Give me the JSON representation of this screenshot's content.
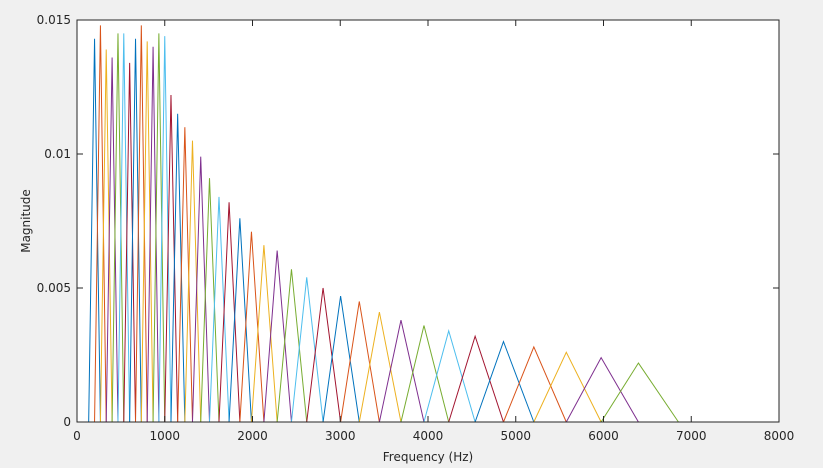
{
  "chart_data": {
    "type": "line",
    "xlabel": "Frequency (Hz)",
    "ylabel": "Magnitude",
    "xlim": [
      0,
      8000
    ],
    "ylim": [
      0,
      0.015
    ],
    "xticks": [
      0,
      1000,
      2000,
      3000,
      4000,
      5000,
      6000,
      7000,
      8000
    ],
    "yticks": [
      0,
      0.005,
      0.01,
      0.015
    ],
    "series": [
      {
        "color": "#0072BD",
        "x": [
          133,
          200,
          267
        ],
        "values": [
          0,
          0.0143,
          0
        ]
      },
      {
        "color": "#D95319",
        "x": [
          200,
          267,
          333
        ],
        "values": [
          0,
          0.0148,
          0
        ]
      },
      {
        "color": "#EDB120",
        "x": [
          267,
          333,
          400
        ],
        "values": [
          0,
          0.0139,
          0
        ]
      },
      {
        "color": "#7E2F8E",
        "x": [
          333,
          400,
          467
        ],
        "values": [
          0,
          0.0136,
          0
        ]
      },
      {
        "color": "#77AC30",
        "x": [
          400,
          467,
          533
        ],
        "values": [
          0,
          0.0145,
          0
        ]
      },
      {
        "color": "#4DBEEE",
        "x": [
          467,
          533,
          600
        ],
        "values": [
          0,
          0.0145,
          0
        ]
      },
      {
        "color": "#A2142F",
        "x": [
          533,
          600,
          667
        ],
        "values": [
          0,
          0.0134,
          0
        ]
      },
      {
        "color": "#0072BD",
        "x": [
          600,
          667,
          733
        ],
        "values": [
          0,
          0.0143,
          0
        ]
      },
      {
        "color": "#D95319",
        "x": [
          667,
          733,
          800
        ],
        "values": [
          0,
          0.0148,
          0
        ]
      },
      {
        "color": "#EDB120",
        "x": [
          733,
          800,
          867
        ],
        "values": [
          0,
          0.0142,
          0
        ]
      },
      {
        "color": "#7E2F8E",
        "x": [
          800,
          867,
          933
        ],
        "values": [
          0,
          0.014,
          0
        ]
      },
      {
        "color": "#77AC30",
        "x": [
          867,
          933,
          1000
        ],
        "values": [
          0,
          0.0145,
          0
        ]
      },
      {
        "color": "#4DBEEE",
        "x": [
          933,
          1000,
          1071
        ],
        "values": [
          0,
          0.0144,
          0
        ]
      },
      {
        "color": "#A2142F",
        "x": [
          1000,
          1071,
          1147
        ],
        "values": [
          0,
          0.0122,
          0
        ]
      },
      {
        "color": "#0072BD",
        "x": [
          1071,
          1147,
          1229
        ],
        "values": [
          0,
          0.0115,
          0
        ]
      },
      {
        "color": "#D95319",
        "x": [
          1147,
          1229,
          1316
        ],
        "values": [
          0,
          0.011,
          0
        ]
      },
      {
        "color": "#EDB120",
        "x": [
          1229,
          1316,
          1410
        ],
        "values": [
          0,
          0.0105,
          0
        ]
      },
      {
        "color": "#7E2F8E",
        "x": [
          1316,
          1410,
          1510
        ],
        "values": [
          0,
          0.0099,
          0
        ]
      },
      {
        "color": "#77AC30",
        "x": [
          1410,
          1510,
          1618
        ],
        "values": [
          0,
          0.0091,
          0
        ]
      },
      {
        "color": "#4DBEEE",
        "x": [
          1510,
          1618,
          1733
        ],
        "values": [
          0,
          0.0084,
          0
        ]
      },
      {
        "color": "#A2142F",
        "x": [
          1618,
          1733,
          1856
        ],
        "values": [
          0,
          0.0082,
          0
        ]
      },
      {
        "color": "#0072BD",
        "x": [
          1733,
          1856,
          1988
        ],
        "values": [
          0,
          0.0076,
          0
        ]
      },
      {
        "color": "#D95319",
        "x": [
          1856,
          1988,
          2130
        ],
        "values": [
          0,
          0.0071,
          0
        ]
      },
      {
        "color": "#EDB120",
        "x": [
          1988,
          2130,
          2281
        ],
        "values": [
          0,
          0.0066,
          0
        ]
      },
      {
        "color": "#7E2F8E",
        "x": [
          2130,
          2281,
          2444
        ],
        "values": [
          0,
          0.0064,
          0
        ]
      },
      {
        "color": "#77AC30",
        "x": [
          2281,
          2444,
          2618
        ],
        "values": [
          0,
          0.0057,
          0
        ]
      },
      {
        "color": "#4DBEEE",
        "x": [
          2444,
          2618,
          2804
        ],
        "values": [
          0,
          0.0054,
          0
        ]
      },
      {
        "color": "#A2142F",
        "x": [
          2618,
          2804,
          3004
        ],
        "values": [
          0,
          0.005,
          0
        ]
      },
      {
        "color": "#0072BD",
        "x": [
          2804,
          3004,
          3217
        ],
        "values": [
          0,
          0.0047,
          0
        ]
      },
      {
        "color": "#D95319",
        "x": [
          3004,
          3217,
          3446
        ],
        "values": [
          0,
          0.0045,
          0
        ]
      },
      {
        "color": "#EDB120",
        "x": [
          3217,
          3446,
          3692
        ],
        "values": [
          0,
          0.0041,
          0
        ]
      },
      {
        "color": "#7E2F8E",
        "x": [
          3446,
          3692,
          3954
        ],
        "values": [
          0,
          0.0038,
          0
        ]
      },
      {
        "color": "#77AC30",
        "x": [
          3692,
          3954,
          4236
        ],
        "values": [
          0,
          0.0036,
          0
        ]
      },
      {
        "color": "#4DBEEE",
        "x": [
          3954,
          4236,
          4537
        ],
        "values": [
          0,
          0.0034,
          0
        ]
      },
      {
        "color": "#A2142F",
        "x": [
          4236,
          4537,
          4860
        ],
        "values": [
          0,
          0.0032,
          0
        ]
      },
      {
        "color": "#0072BD",
        "x": [
          4537,
          4860,
          5206
        ],
        "values": [
          0,
          0.003,
          0
        ]
      },
      {
        "color": "#D95319",
        "x": [
          4860,
          5206,
          5576
        ],
        "values": [
          0,
          0.0028,
          0
        ]
      },
      {
        "color": "#EDB120",
        "x": [
          5206,
          5576,
          5973
        ],
        "values": [
          0,
          0.0026,
          0
        ]
      },
      {
        "color": "#7E2F8E",
        "x": [
          5576,
          5973,
          6398
        ],
        "values": [
          0,
          0.0024,
          0
        ]
      },
      {
        "color": "#77AC30",
        "x": [
          5973,
          6398,
          6854
        ],
        "values": [
          0,
          0.0022,
          0
        ]
      }
    ]
  }
}
